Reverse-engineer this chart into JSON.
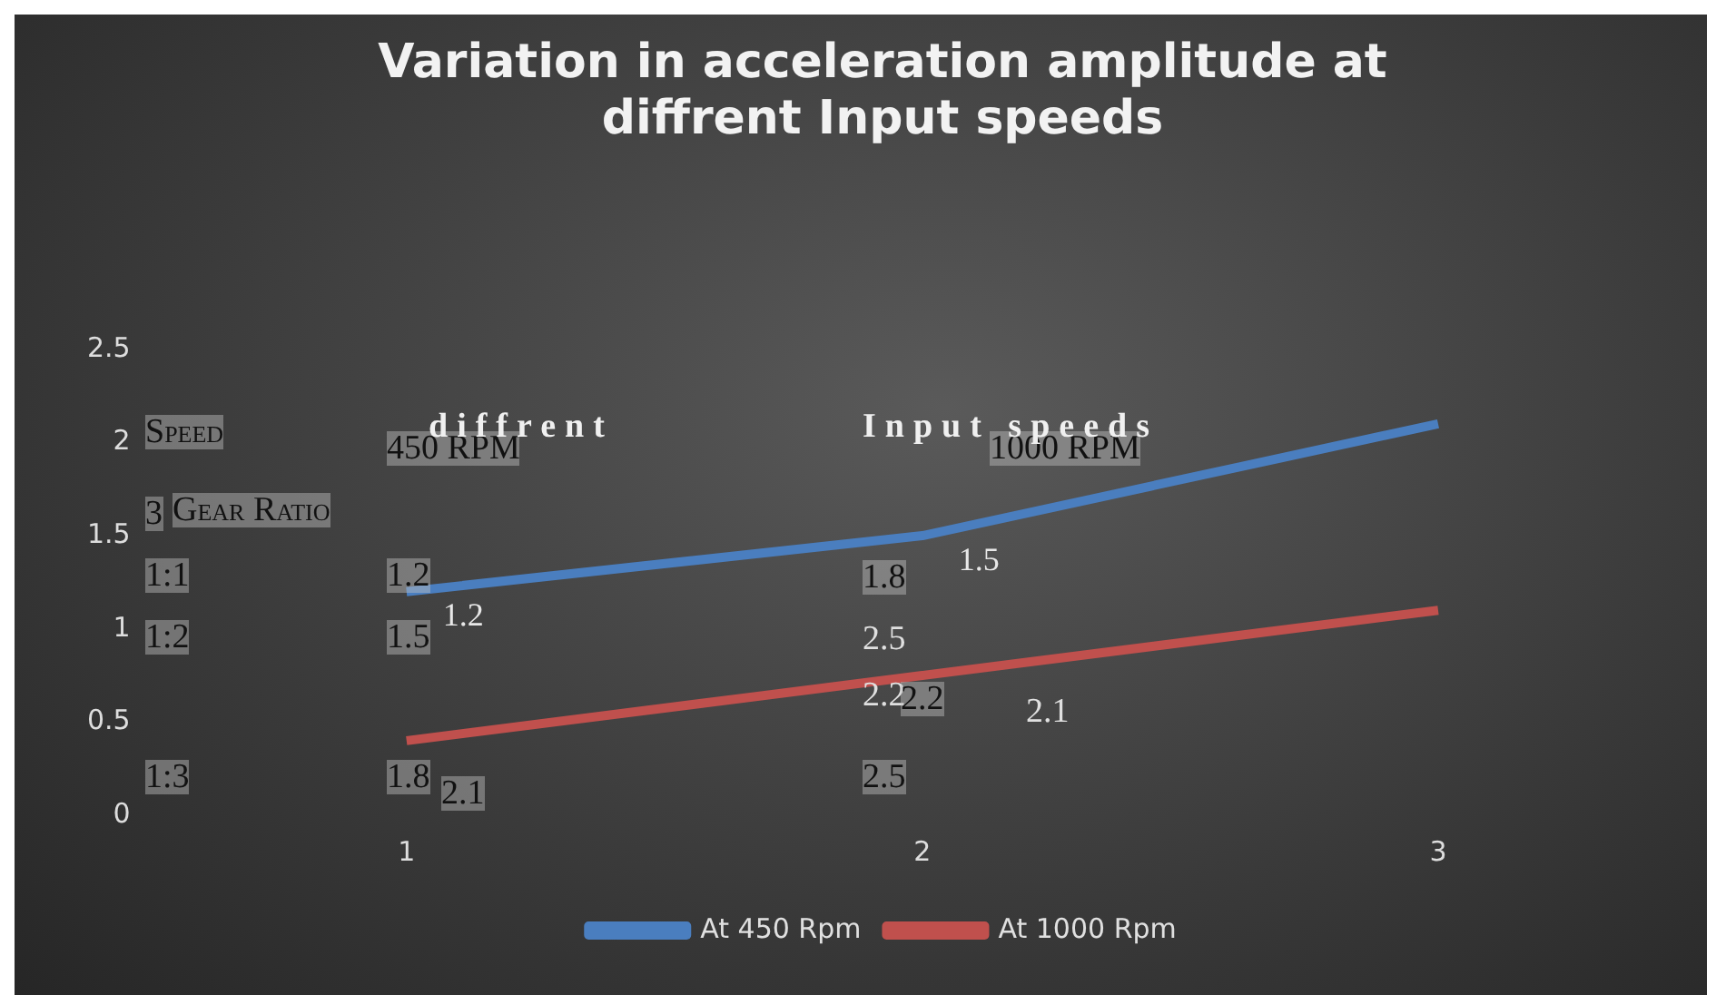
{
  "chart_data": {
    "type": "line",
    "title": "Variation in acceleration amplitude at\ndiffrent Input speeds",
    "categories": [
      "1",
      "2",
      "3"
    ],
    "series": [
      {
        "name": "At 450 Rpm",
        "color": "#4a7ebf",
        "values": [
          1.2,
          1.5,
          2.1
        ],
        "value_labels": [
          "1.2",
          "1.5",
          null
        ]
      },
      {
        "name": "At 1000 Rpm",
        "color": "#c0504d",
        "values": [
          0.4,
          0.75,
          1.1
        ]
      }
    ],
    "ylim": [
      0,
      2.5
    ],
    "yticks": [
      0,
      0.5,
      1,
      1.5,
      2,
      2.5
    ],
    "grid": false,
    "legend": "bottom",
    "marker": "none",
    "line_style": "solid",
    "annotations": [
      "Speed",
      "450 RPM",
      "1000 RPM",
      "3",
      "Gear Ratio",
      "1:1",
      "1.2",
      "1.8",
      "1:2",
      "1.5",
      "2.5",
      "1:3",
      "1.8",
      "2.5",
      "diffrent",
      "Input speeds",
      "2.1",
      "2.2",
      "2.2",
      "2.1"
    ]
  }
}
